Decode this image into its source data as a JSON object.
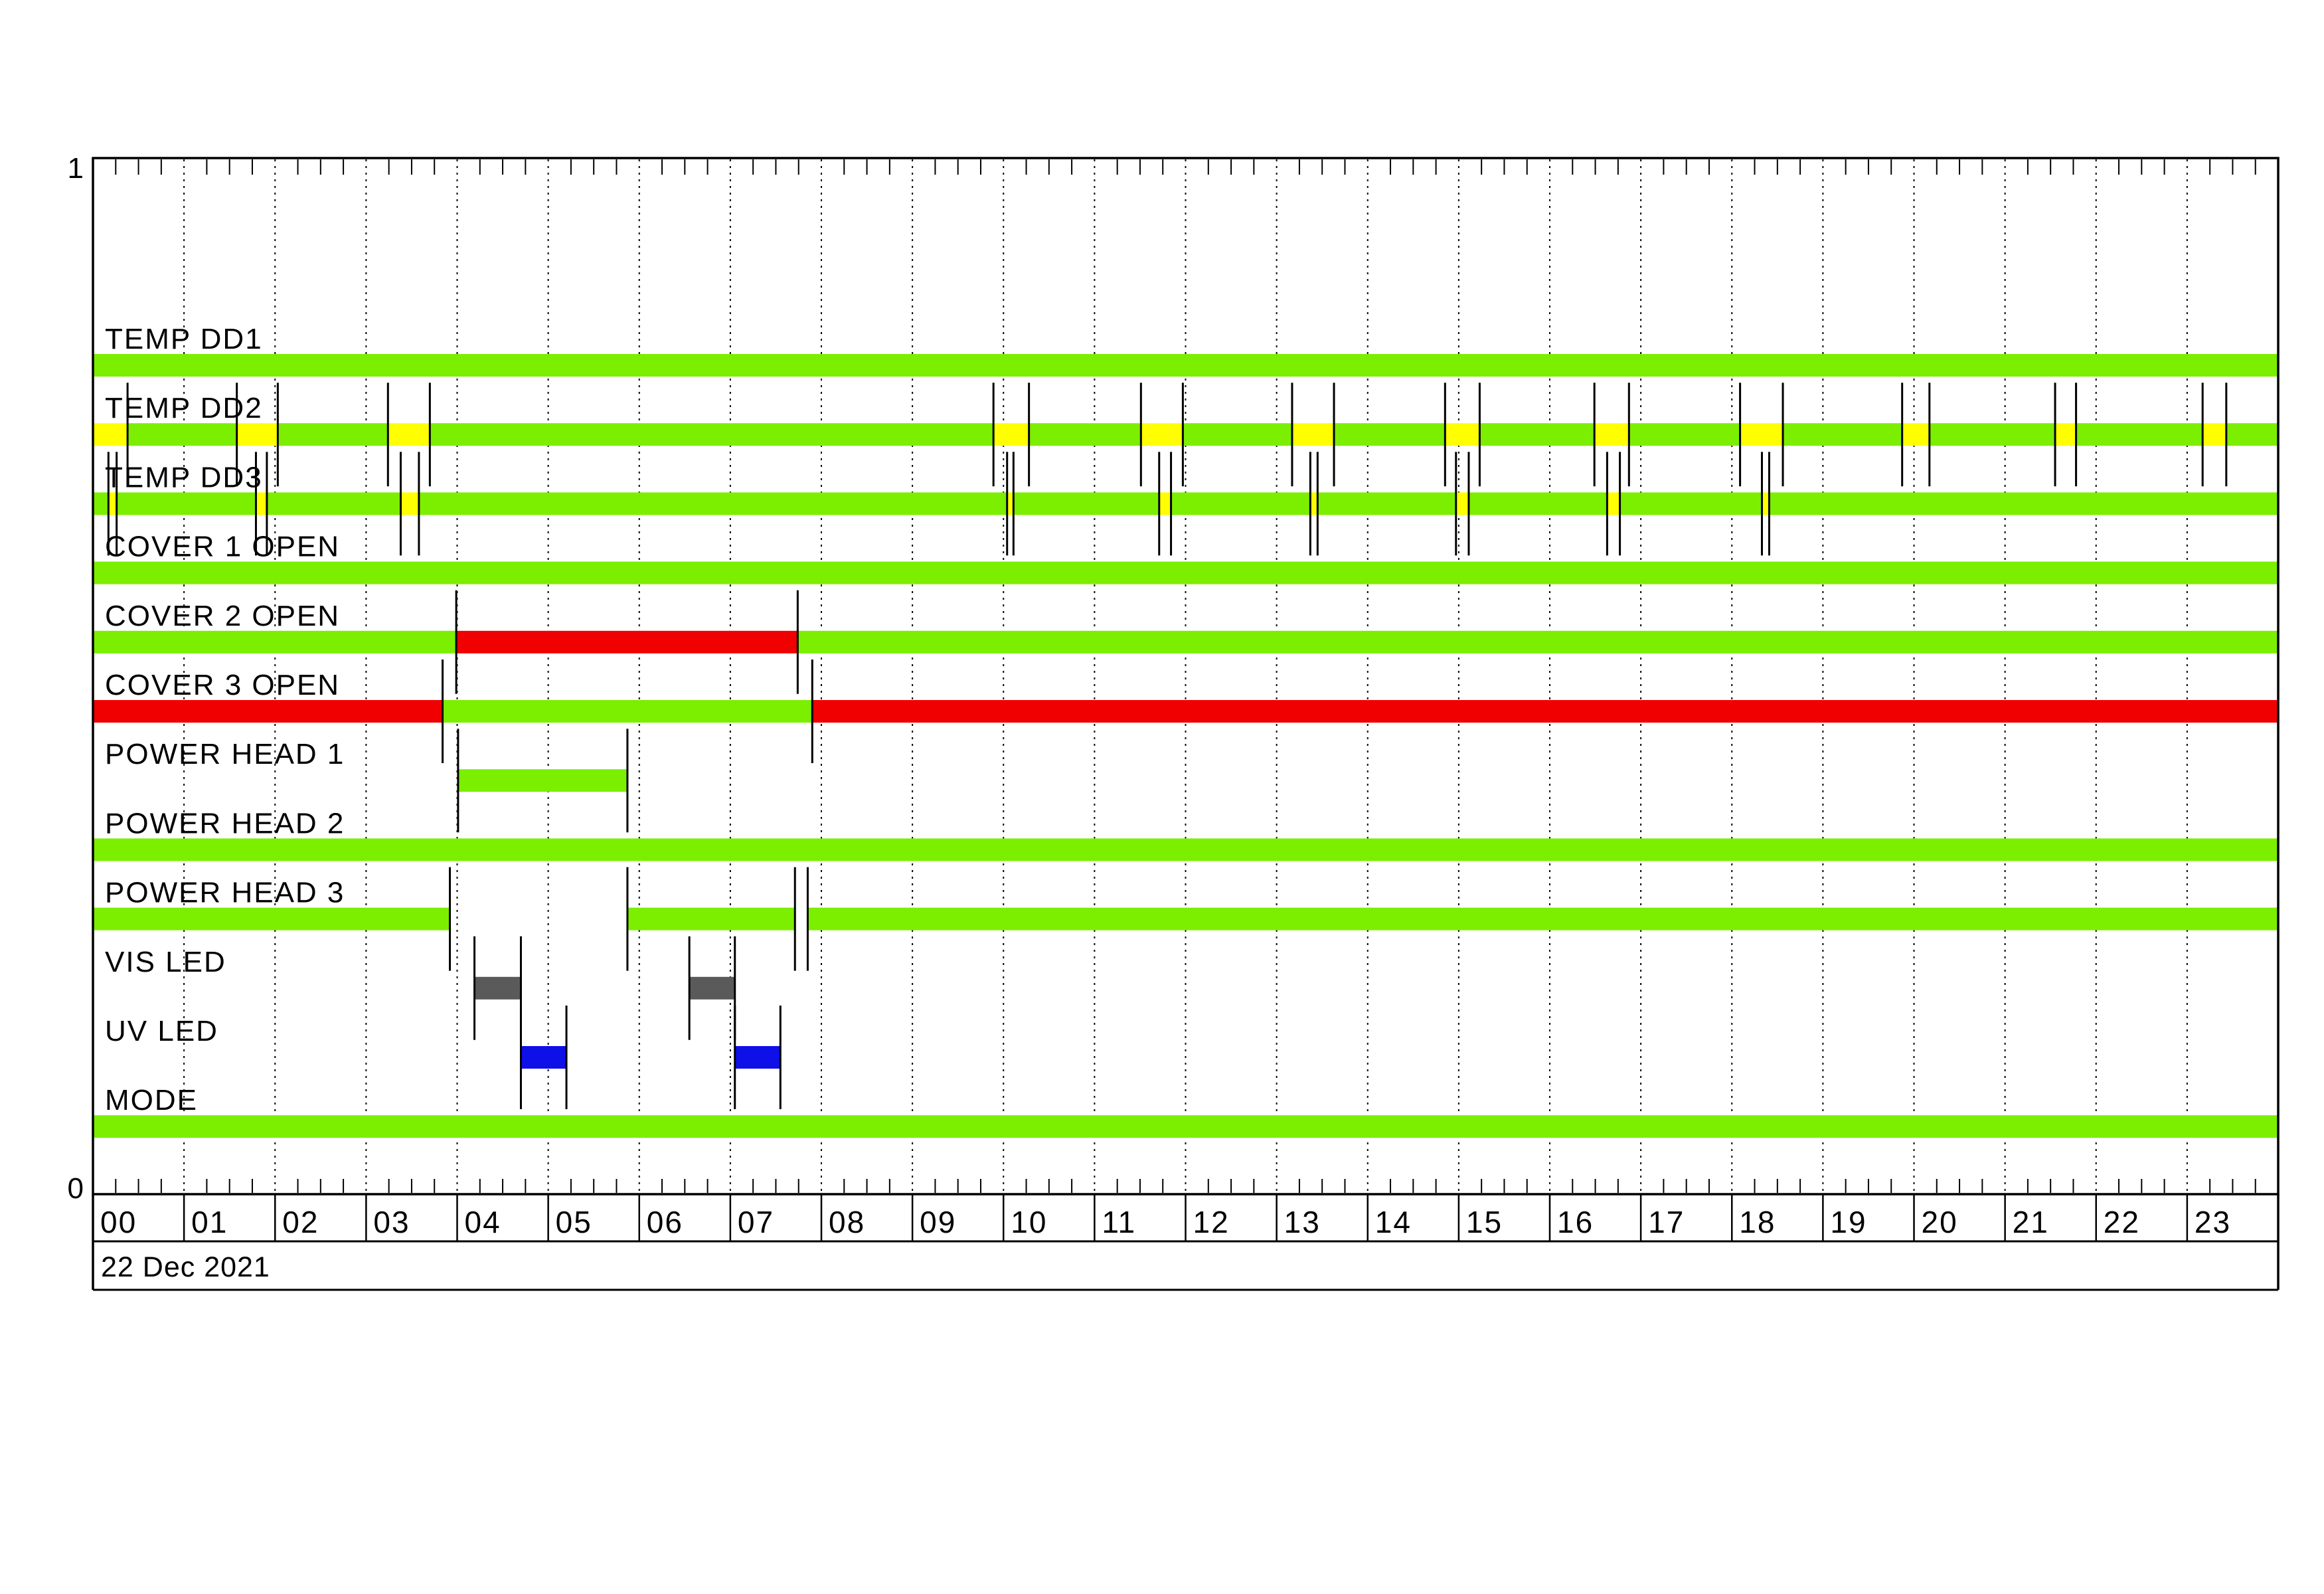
{
  "chart_data": {
    "type": "timeline",
    "title": "",
    "date_label": "22 Dec 2021",
    "x_axis": {
      "unit": "hours",
      "min": 0,
      "max": 24,
      "hour_labels": [
        "00",
        "01",
        "02",
        "03",
        "04",
        "05",
        "06",
        "07",
        "08",
        "09",
        "10",
        "11",
        "12",
        "13",
        "14",
        "15",
        "16",
        "17",
        "18",
        "19",
        "20",
        "21",
        "22",
        "23"
      ],
      "minor_tick_minutes": 15,
      "gridlines": "dashed vertical line at every hour 1-23"
    },
    "y_axis": {
      "top_label": "1",
      "bottom_label": "0"
    },
    "colors": {
      "green": "#7CEE00",
      "red": "#F00000",
      "yellow": "#FFFF00",
      "gray": "#5A5A5A",
      "blue": "#0F0FE8"
    },
    "rows": [
      {
        "label": "TEMP DD1",
        "segments": [
          [
            0,
            24,
            "green"
          ]
        ],
        "markers": []
      },
      {
        "label": "TEMP DD2",
        "segments": [
          [
            0,
            0.38,
            "yellow"
          ],
          [
            0.38,
            1.58,
            "green"
          ],
          [
            1.58,
            2.03,
            "yellow"
          ],
          [
            2.03,
            3.24,
            "green"
          ],
          [
            3.24,
            3.7,
            "yellow"
          ],
          [
            3.7,
            9.89,
            "green"
          ],
          [
            9.89,
            10.28,
            "yellow"
          ],
          [
            10.28,
            11.51,
            "green"
          ],
          [
            11.51,
            11.97,
            "yellow"
          ],
          [
            11.97,
            13.17,
            "green"
          ],
          [
            13.17,
            13.63,
            "yellow"
          ],
          [
            13.63,
            14.85,
            "green"
          ],
          [
            14.85,
            15.23,
            "yellow"
          ],
          [
            15.23,
            16.49,
            "green"
          ],
          [
            16.49,
            16.87,
            "yellow"
          ],
          [
            16.87,
            18.09,
            "green"
          ],
          [
            18.09,
            18.56,
            "yellow"
          ],
          [
            18.56,
            19.87,
            "green"
          ],
          [
            19.87,
            20.17,
            "yellow"
          ],
          [
            20.17,
            21.55,
            "green"
          ],
          [
            21.55,
            21.78,
            "yellow"
          ],
          [
            21.78,
            23.17,
            "green"
          ],
          [
            23.17,
            23.43,
            "yellow"
          ],
          [
            23.43,
            24,
            "green"
          ]
        ],
        "markers": [
          0.38,
          1.58,
          2.03,
          3.24,
          3.7,
          9.89,
          10.28,
          11.51,
          11.97,
          13.17,
          13.63,
          14.85,
          15.23,
          16.49,
          16.87,
          18.09,
          18.56,
          19.87,
          20.17,
          21.55,
          21.78,
          23.17,
          23.43
        ]
      },
      {
        "label": "TEMP DD3",
        "segments": [
          [
            0,
            0.17,
            "green"
          ],
          [
            0.17,
            0.26,
            "yellow"
          ],
          [
            0.26,
            1.79,
            "green"
          ],
          [
            1.79,
            1.91,
            "yellow"
          ],
          [
            1.91,
            3.38,
            "green"
          ],
          [
            3.38,
            3.58,
            "yellow"
          ],
          [
            3.58,
            10.04,
            "green"
          ],
          [
            10.04,
            10.11,
            "yellow"
          ],
          [
            10.11,
            11.71,
            "green"
          ],
          [
            11.71,
            11.84,
            "yellow"
          ],
          [
            11.84,
            13.37,
            "green"
          ],
          [
            13.37,
            13.45,
            "yellow"
          ],
          [
            13.45,
            14.97,
            "green"
          ],
          [
            14.97,
            15.11,
            "yellow"
          ],
          [
            15.11,
            16.63,
            "green"
          ],
          [
            16.63,
            16.77,
            "yellow"
          ],
          [
            16.77,
            18.33,
            "green"
          ],
          [
            18.33,
            18.41,
            "yellow"
          ],
          [
            18.41,
            24,
            "green"
          ]
        ],
        "markers": [
          0.17,
          0.26,
          1.79,
          1.91,
          3.38,
          3.58,
          10.04,
          10.11,
          11.71,
          11.84,
          13.37,
          13.45,
          14.97,
          15.11,
          16.63,
          16.77,
          18.33,
          18.41
        ]
      },
      {
        "label": "COVER 1 OPEN",
        "segments": [
          [
            0,
            24,
            "green"
          ]
        ],
        "markers": []
      },
      {
        "label": "COVER 2 OPEN",
        "segments": [
          [
            0,
            3.99,
            "green"
          ],
          [
            3.99,
            7.74,
            "red"
          ],
          [
            7.74,
            24,
            "green"
          ]
        ],
        "markers": [
          3.99,
          7.74
        ]
      },
      {
        "label": "COVER 3 OPEN",
        "segments": [
          [
            0,
            3.84,
            "red"
          ],
          [
            3.84,
            7.9,
            "green"
          ],
          [
            7.9,
            24,
            "red"
          ]
        ],
        "markers": [
          3.84,
          7.9
        ]
      },
      {
        "label": "POWER HEAD 1",
        "segments": [
          [
            4.01,
            5.87,
            "green"
          ]
        ],
        "markers": [
          4.01,
          5.87
        ]
      },
      {
        "label": "POWER HEAD 2",
        "segments": [
          [
            0,
            24,
            "green"
          ]
        ],
        "markers": []
      },
      {
        "label": "POWER HEAD 3",
        "segments": [
          [
            0,
            3.92,
            "green"
          ],
          [
            5.87,
            7.71,
            "green"
          ],
          [
            7.85,
            24,
            "green"
          ]
        ],
        "markers": [
          3.92,
          5.87,
          7.71,
          7.85
        ]
      },
      {
        "label": "VIS LED",
        "segments": [
          [
            4.19,
            4.7,
            "gray"
          ],
          [
            6.55,
            7.05,
            "gray"
          ]
        ],
        "markers": [
          4.19,
          4.7,
          6.55,
          7.05
        ]
      },
      {
        "label": "UV LED",
        "segments": [
          [
            4.7,
            5.2,
            "blue"
          ],
          [
            7.05,
            7.55,
            "blue"
          ]
        ],
        "markers": [
          4.7,
          5.2,
          7.05,
          7.55
        ]
      },
      {
        "label": "MODE",
        "segments": [
          [
            0,
            24,
            "green"
          ]
        ],
        "markers": []
      }
    ]
  }
}
